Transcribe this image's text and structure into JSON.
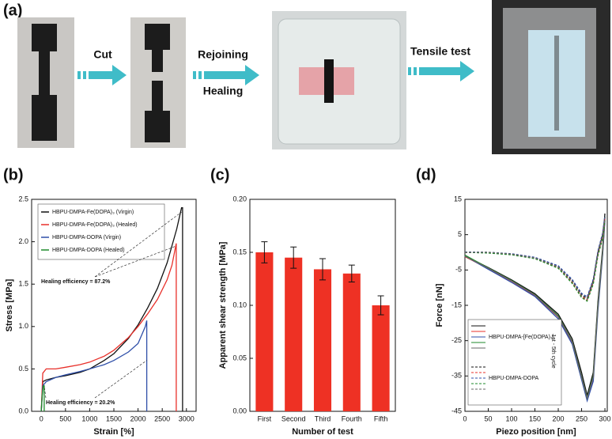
{
  "panel_a": {
    "label": "(a)",
    "steps": [
      "Cut",
      "Rejoining",
      "Healing",
      "Tensile test"
    ]
  },
  "chart_data": [
    {
      "type": "line",
      "panel_label": "(b)",
      "xlabel": "Strain  [%]",
      "ylabel": "Stress  [MPa]",
      "xlim": [
        -200,
        3200
      ],
      "ylim": [
        0,
        2.5
      ],
      "xticks": [
        0,
        500,
        1000,
        1500,
        2000,
        2500,
        3000
      ],
      "yticks": [
        {
          "value": 0,
          "label": "0.0"
        },
        0.5,
        {
          "value": 1,
          "label": "1.0"
        },
        1.5,
        {
          "value": 2,
          "label": "2.0"
        },
        2.5
      ],
      "legend": "upper left",
      "series": [
        {
          "name": "HBPU-DMPA-Fe(DOPA)₃ (Virgin)",
          "color": "#111111",
          "x": [
            0,
            30,
            100,
            300,
            500,
            800,
            1000,
            1300,
            1500,
            1800,
            2000,
            2200,
            2400,
            2600,
            2700,
            2800,
            2900,
            2920,
            2920
          ],
          "values": [
            0,
            0.35,
            0.37,
            0.4,
            0.42,
            0.46,
            0.5,
            0.6,
            0.68,
            0.86,
            1.02,
            1.22,
            1.45,
            1.75,
            1.95,
            2.15,
            2.4,
            2.4,
            0
          ]
        },
        {
          "name": "HBPU-DMPA-Fe(DOPA)₃ (Healed)",
          "color": "#e8302a",
          "x": [
            0,
            30,
            100,
            300,
            500,
            800,
            1000,
            1300,
            1500,
            1800,
            2000,
            2200,
            2400,
            2600,
            2700,
            2790,
            2790
          ],
          "values": [
            0,
            0.45,
            0.5,
            0.5,
            0.52,
            0.55,
            0.58,
            0.65,
            0.72,
            0.87,
            1.0,
            1.15,
            1.32,
            1.55,
            1.72,
            1.98,
            0
          ]
        },
        {
          "name": "HBPU-DMPA-DOPA (Virgin)",
          "color": "#2f4fa8",
          "x": [
            0,
            30,
            100,
            300,
            500,
            800,
            1000,
            1300,
            1500,
            1800,
            2000,
            2150,
            2180,
            2180
          ],
          "values": [
            0,
            0.3,
            0.35,
            0.4,
            0.43,
            0.47,
            0.5,
            0.55,
            0.6,
            0.7,
            0.8,
            1.0,
            1.07,
            0
          ]
        },
        {
          "name": "HBPU-DMPA-DOPA (Healed)",
          "color": "#1e8a2a",
          "x": [
            0,
            20,
            40,
            60,
            60
          ],
          "values": [
            0,
            0.2,
            0.3,
            0.3,
            0
          ]
        }
      ],
      "annotations": [
        "Healing efficiency = 87.2%",
        "Healing efficiency = 20.2%"
      ]
    },
    {
      "type": "bar",
      "panel_label": "(c)",
      "xlabel": "Number of test",
      "ylabel": "Apparent shear strength  [MPa]",
      "categories": [
        "First",
        "Second",
        "Third",
        "Fourth",
        "Fifth"
      ],
      "values": [
        0.15,
        0.145,
        0.134,
        0.13,
        0.1
      ],
      "errors": [
        0.01,
        0.01,
        0.01,
        0.008,
        0.009
      ],
      "color": "#ee3124",
      "ylim": [
        0,
        0.2
      ],
      "yticks": [
        {
          "value": 0,
          "label": "0.00"
        },
        0.05,
        {
          "value": 0.1,
          "label": "0.10"
        },
        0.15,
        {
          "value": 0.2,
          "label": "0.20"
        }
      ]
    },
    {
      "type": "line",
      "panel_label": "(d)",
      "xlabel": "Piezo position  [nm]",
      "ylabel": "Force  [nN]",
      "xlim": [
        0,
        305
      ],
      "ylim": [
        -45,
        15
      ],
      "xticks": [
        0,
        50,
        100,
        150,
        200,
        250,
        300
      ],
      "yticks": [
        15,
        5,
        -5,
        -15,
        -25,
        -35,
        -45
      ],
      "legend": "lower left",
      "x": [
        0,
        50,
        100,
        150,
        200,
        230,
        250,
        262,
        275,
        285,
        295,
        300
      ],
      "series": [
        {
          "color": "#111111",
          "dash": false,
          "values": [
            -1,
            -4.3,
            -7.8,
            -11.7,
            -17.5,
            -24.5,
            -34,
            -40.5,
            -34,
            -14,
            1,
            11
          ]
        },
        {
          "color": "#e8302a",
          "dash": false,
          "values": [
            -1.2,
            -4.6,
            -8.2,
            -12.3,
            -18.3,
            -25.5,
            -35.5,
            -41.5,
            -35.5,
            -15.5,
            -0.5,
            9.5
          ]
        },
        {
          "color": "#2f4fa8",
          "dash": false,
          "values": [
            -1,
            -4.8,
            -8.5,
            -12.5,
            -18.8,
            -26,
            -36,
            -42,
            -36.5,
            -16.5,
            -1,
            9
          ]
        },
        {
          "color": "#1e8a2a",
          "dash": false,
          "values": [
            -0.8,
            -4.4,
            -8,
            -12,
            -18,
            -25.2,
            -35.2,
            -41.2,
            -35,
            -15,
            0,
            10
          ]
        },
        {
          "color": "#666666",
          "dash": false,
          "values": [
            -1.1,
            -4.5,
            -8.1,
            -12.1,
            -18.2,
            -25.3,
            -35.3,
            -41.3,
            -35.3,
            -15.3,
            -0.3,
            9.8
          ]
        },
        {
          "color": "#111111",
          "dash": true,
          "values": [
            0,
            0,
            -0.5,
            -1.5,
            -4,
            -8,
            -12,
            -13,
            -8,
            0,
            5,
            10
          ]
        },
        {
          "color": "#e8302a",
          "dash": true,
          "values": [
            0,
            -0.1,
            -0.6,
            -1.7,
            -4.3,
            -8.5,
            -12.5,
            -13.5,
            -8.5,
            -0.5,
            4.5,
            9.5
          ]
        },
        {
          "color": "#2f4fa8",
          "dash": true,
          "values": [
            0.1,
            0,
            -0.4,
            -1.4,
            -3.8,
            -7.7,
            -11.6,
            -12.6,
            -7.6,
            0.4,
            5.4,
            10.4
          ]
        },
        {
          "color": "#1e8a2a",
          "dash": true,
          "values": [
            0,
            -0.2,
            -0.7,
            -1.8,
            -4.5,
            -8.8,
            -12.8,
            -13.8,
            -9,
            -1,
            4,
            9
          ]
        },
        {
          "color": "#666666",
          "dash": true,
          "values": [
            0,
            0,
            -0.5,
            -1.6,
            -4.1,
            -8.2,
            -12.2,
            -13.2,
            -8.2,
            -0.2,
            4.8,
            9.8
          ]
        }
      ],
      "legend_labels": [
        "HBPU-DMPA-[Fe(DOPA)₃]",
        "HBPU-DMPA-DOPA"
      ],
      "annotation": "1st - 5th cycle"
    }
  ]
}
